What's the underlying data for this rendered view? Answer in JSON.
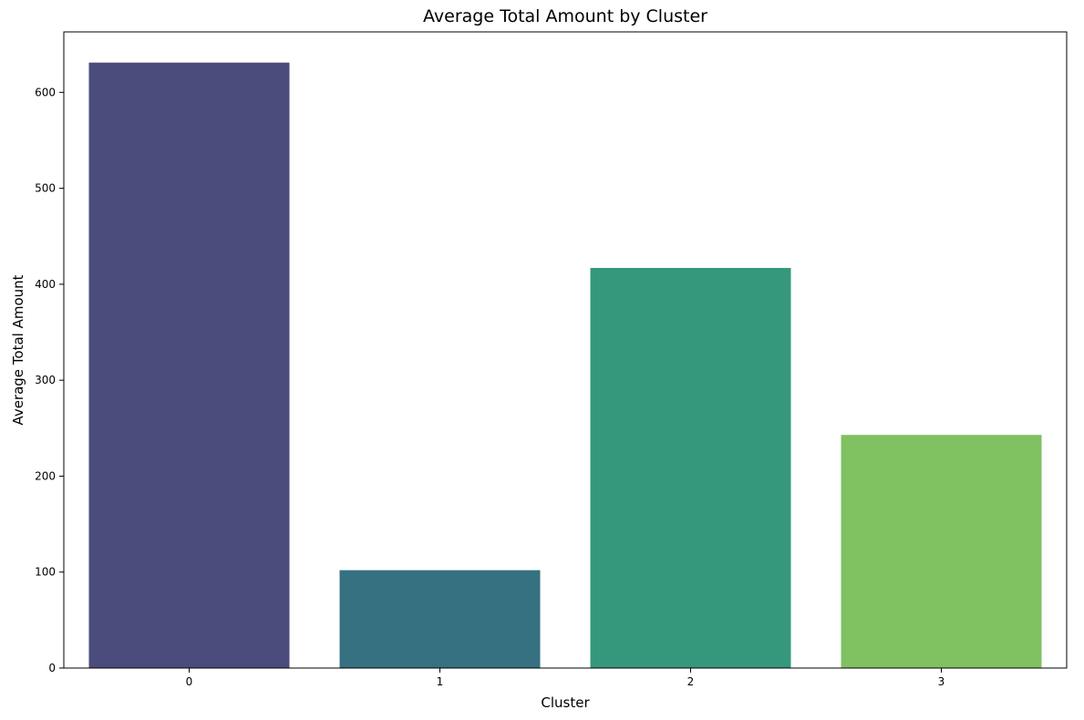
{
  "chart_data": {
    "type": "bar",
    "title": "Average Total Amount by Cluster",
    "xlabel": "Cluster",
    "ylabel": "Average Total Amount",
    "categories": [
      "0",
      "1",
      "2",
      "3"
    ],
    "values": [
      631,
      102,
      417,
      243
    ],
    "colors": [
      "#4a4c7c",
      "#367181",
      "#35987c",
      "#80c161"
    ],
    "ylim": [
      0,
      663
    ],
    "yticks": [
      0,
      100,
      200,
      300,
      400,
      500,
      600
    ],
    "grid": false,
    "legend": "none"
  }
}
